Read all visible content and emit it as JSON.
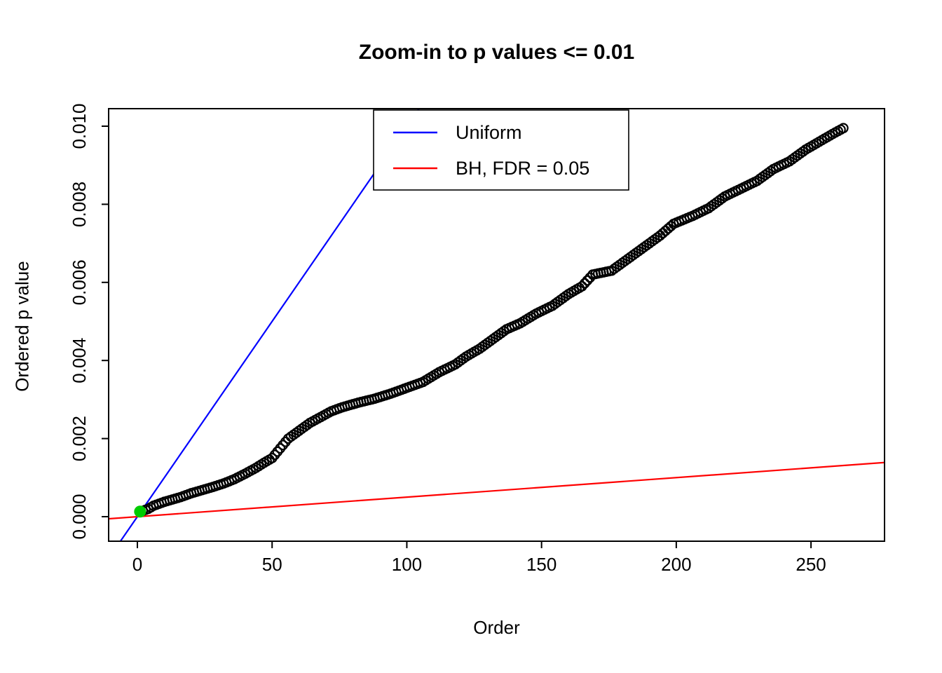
{
  "figure": {
    "background": "#FFFFFF"
  },
  "chart_data": {
    "type": "scatter",
    "title": "Zoom-in to p values <= 0.01",
    "xlabel": "Order",
    "ylabel": "Ordered p value",
    "xlim": [
      -10.7,
      277.3
    ],
    "ylim": [
      -0.00063,
      0.01045
    ],
    "x_ticks": [
      0,
      50,
      100,
      150,
      200,
      250
    ],
    "x_tick_labels": [
      "0",
      "50",
      "100",
      "150",
      "200",
      "250"
    ],
    "y_ticks": [
      0.0,
      0.002,
      0.004,
      0.006,
      0.008,
      0.01
    ],
    "y_tick_labels": [
      "0.000",
      "0.002",
      "0.004",
      "0.006",
      "0.008",
      "0.010"
    ],
    "grid": false,
    "colors": {
      "points": "#000000",
      "uniform_line": "#0000FF",
      "bh_line": "#FF0000",
      "highlight_point": "#00CC00",
      "box": "#000000"
    },
    "legend": {
      "position": "top-center",
      "entries": [
        {
          "label": "Uniform",
          "color": "#0000FF"
        },
        {
          "label": "BH, FDR = 0.05",
          "color": "#FF0000"
        }
      ]
    },
    "lines": [
      {
        "name": "uniform",
        "label": "Uniform",
        "color": "#0000FF",
        "slope": 0.0001,
        "intercept": 0
      },
      {
        "name": "bh_fdr",
        "label": "BH, FDR = 0.05",
        "color": "#FF0000",
        "slope": 5e-06,
        "intercept": 0
      }
    ],
    "highlight_point": {
      "x": 1,
      "y": 0.00013,
      "color": "#00CC00",
      "style": "filled-circle"
    },
    "ordered_p_values": {
      "description": "ordered p values <= 0.01 plotted against their rank",
      "n": 262,
      "marker": "open-circle",
      "color": "#000000",
      "anchors": [
        [
          1,
          0.00013
        ],
        [
          2,
          0.00015
        ],
        [
          4,
          0.0002
        ],
        [
          6,
          0.00028
        ],
        [
          8,
          0.00033
        ],
        [
          10,
          0.00038
        ],
        [
          13,
          0.00044
        ],
        [
          16,
          0.0005
        ],
        [
          20,
          0.0006
        ],
        [
          24,
          0.00068
        ],
        [
          28,
          0.00076
        ],
        [
          32,
          0.00085
        ],
        [
          36,
          0.00096
        ],
        [
          40,
          0.0011
        ],
        [
          44,
          0.00125
        ],
        [
          47,
          0.00138
        ],
        [
          50,
          0.0015
        ],
        [
          53,
          0.00175
        ],
        [
          56,
          0.002
        ],
        [
          60,
          0.0022
        ],
        [
          64,
          0.0024
        ],
        [
          68,
          0.00255
        ],
        [
          72,
          0.0027
        ],
        [
          76,
          0.0028
        ],
        [
          82,
          0.00292
        ],
        [
          88,
          0.00302
        ],
        [
          94,
          0.00315
        ],
        [
          100,
          0.0033
        ],
        [
          106,
          0.00345
        ],
        [
          112,
          0.0037
        ],
        [
          118,
          0.0039
        ],
        [
          122,
          0.0041
        ],
        [
          127,
          0.0043
        ],
        [
          132,
          0.00455
        ],
        [
          137,
          0.0048
        ],
        [
          142,
          0.00495
        ],
        [
          148,
          0.0052
        ],
        [
          154,
          0.0054
        ],
        [
          160,
          0.0057
        ],
        [
          165,
          0.0059
        ],
        [
          169,
          0.0062
        ],
        [
          176,
          0.0063
        ],
        [
          182,
          0.0066
        ],
        [
          188,
          0.0069
        ],
        [
          194,
          0.0072
        ],
        [
          199,
          0.0075
        ],
        [
          206,
          0.0077
        ],
        [
          212,
          0.0079
        ],
        [
          218,
          0.0082
        ],
        [
          224,
          0.0084
        ],
        [
          230,
          0.0086
        ],
        [
          236,
          0.0089
        ],
        [
          242,
          0.0091
        ],
        [
          248,
          0.0094
        ],
        [
          253,
          0.0096
        ],
        [
          258,
          0.0098
        ],
        [
          262,
          0.00995
        ]
      ]
    }
  }
}
